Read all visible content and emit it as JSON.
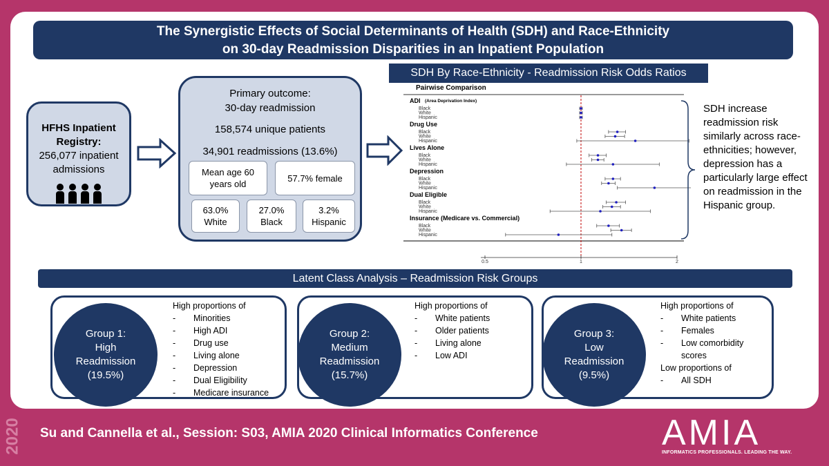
{
  "title": {
    "line1": "The Synergistic Effects of Social Determinants of Health (SDH) and Race-Ethnicity",
    "line2": "on 30-day Readmission Disparities in an Inpatient Population"
  },
  "registry": {
    "title_line1": "HFHS Inpatient",
    "title_line2": "Registry:",
    "text_line1": "256,077 inpatient",
    "text_line2": "admissions"
  },
  "outcome": {
    "line1": "Primary outcome:",
    "line2": "30-day readmission",
    "patients": "158,574 unique patients",
    "readmissions": "34,901 readmissions (13.6%)",
    "age": "Mean age 60 years old",
    "female": "57.7% female",
    "white_pct": "63.0%",
    "white_label": "White",
    "black_pct": "27.0%",
    "black_label": "Black",
    "hispanic_pct": "3.2%",
    "hispanic_label": "Hispanic"
  },
  "sdh_header": "SDH By Race-Ethnicity - Readmission Risk Odds Ratios",
  "side_text": "SDH increase readmission risk similarly across race-ethnicities; however, depression has a particularly large effect on readmission in the Hispanic group.",
  "chart_data": {
    "type": "scatter",
    "subtype": "forest-plot",
    "title": "Pairwise Comparison",
    "xlim": [
      0.5,
      2
    ],
    "reference_line": 1,
    "x_ticks": [
      "0.5",
      "1",
      "2"
    ],
    "groups": [
      {
        "name": "ADI",
        "note": "(Area Deprivation Index)",
        "rows": [
          {
            "label": "Black",
            "or": 1.0,
            "lo": 0.99,
            "hi": 1.01
          },
          {
            "label": "White",
            "or": 1.0,
            "lo": 0.99,
            "hi": 1.01
          },
          {
            "label": "Hispanic",
            "or": 1.0,
            "lo": 0.99,
            "hi": 1.01
          }
        ]
      },
      {
        "name": "Drug Use",
        "note": "",
        "rows": [
          {
            "label": "Black",
            "or": 1.3,
            "lo": 1.22,
            "hi": 1.38
          },
          {
            "label": "White",
            "or": 1.28,
            "lo": 1.19,
            "hi": 1.37
          },
          {
            "label": "Hispanic",
            "or": 1.48,
            "lo": 0.97,
            "hi": 2.18
          }
        ]
      },
      {
        "name": "Lives Alone",
        "note": "",
        "rows": [
          {
            "label": "Black",
            "or": 1.13,
            "lo": 1.06,
            "hi": 1.2
          },
          {
            "label": "White",
            "or": 1.13,
            "lo": 1.08,
            "hi": 1.18
          },
          {
            "label": "Hispanic",
            "or": 1.26,
            "lo": 0.9,
            "hi": 1.76
          }
        ]
      },
      {
        "name": "Depression",
        "note": "",
        "rows": [
          {
            "label": "Black",
            "or": 1.26,
            "lo": 1.19,
            "hi": 1.33
          },
          {
            "label": "White",
            "or": 1.22,
            "lo": 1.16,
            "hi": 1.28
          },
          {
            "label": "Hispanic",
            "or": 1.7,
            "lo": 1.3,
            "hi": 2.22
          }
        ]
      },
      {
        "name": "Dual Eligible",
        "note": "",
        "rows": [
          {
            "label": "Black",
            "or": 1.29,
            "lo": 1.2,
            "hi": 1.38
          },
          {
            "label": "White",
            "or": 1.25,
            "lo": 1.17,
            "hi": 1.33
          },
          {
            "label": "Hispanic",
            "or": 1.15,
            "lo": 0.8,
            "hi": 1.65
          }
        ]
      },
      {
        "name": "Insurance (Medicare vs. Commercial)",
        "note": "",
        "rows": [
          {
            "label": "Black",
            "or": 1.22,
            "lo": 1.12,
            "hi": 1.32
          },
          {
            "label": "White",
            "or": 1.34,
            "lo": 1.24,
            "hi": 1.44
          },
          {
            "label": "Hispanic",
            "or": 0.85,
            "lo": 0.58,
            "hi": 1.25
          }
        ]
      }
    ]
  },
  "lca_title": "Latent Class Analysis – Readmission Risk Groups",
  "groups": [
    {
      "circle_line1": "Group 1:",
      "circle_line2": "High",
      "circle_line3": "Readmission",
      "circle_line4": "(19.5%)",
      "heading": "High proportions  of",
      "items": [
        "Minorities",
        "High ADI",
        "Drug use",
        "Living alone",
        "Depression",
        "Dual Eligibility",
        "Medicare insurance"
      ]
    },
    {
      "circle_line1": "Group 2:",
      "circle_line2": "Medium",
      "circle_line3": "Readmission",
      "circle_line4": "(15.7%)",
      "heading": "High proportions  of",
      "items": [
        "White patients",
        "Older patients",
        "Living alone",
        "Low ADI"
      ]
    },
    {
      "circle_line1": "Group 3:",
      "circle_line2": "Low",
      "circle_line3": "Readmission",
      "circle_line4": "(9.5%)",
      "heading": "High proportions  of",
      "items": [
        "White patients",
        "Females",
        "Low comorbidity",
        "scores"
      ],
      "heading2": "Low proportions  of",
      "items2": [
        "All SDH"
      ]
    }
  ],
  "footer": "Su and Cannella et al., Session: S03, AMIA 2020 Clinical Informatics Conference",
  "year": "2020",
  "logo_text": "AMIA",
  "logo_tagline": "INFORMATICS PROFESSIONALS. LEADING THE WAY."
}
